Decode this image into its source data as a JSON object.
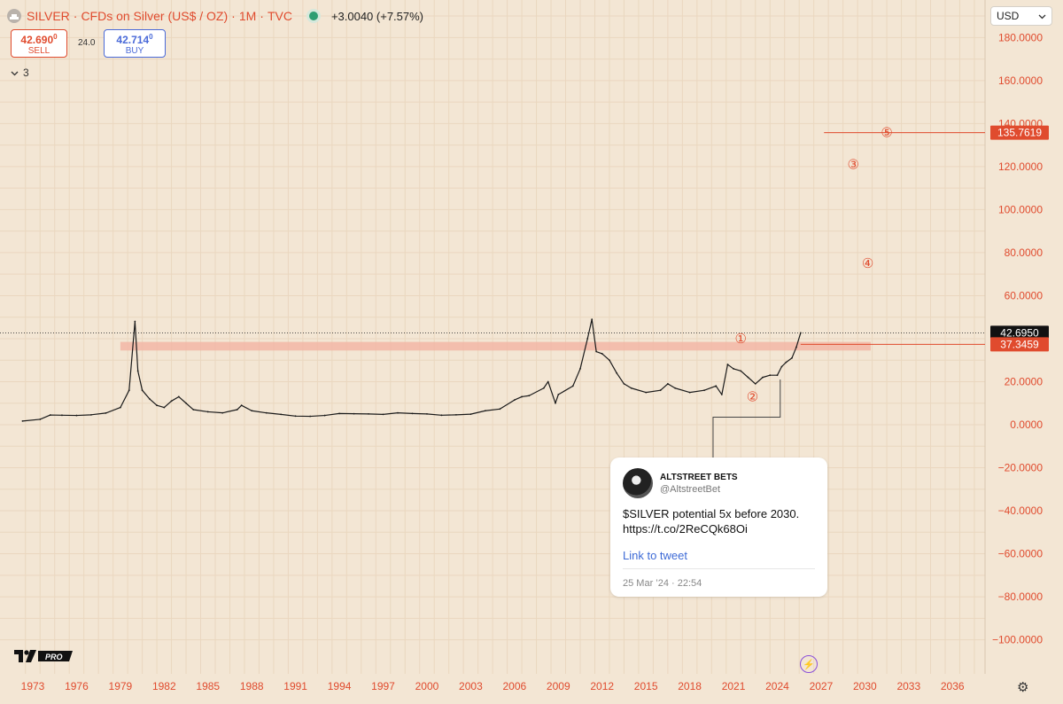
{
  "header": {
    "symbol": "SILVER",
    "description": "CFDs on Silver (US$ / OZ)",
    "interval": "1M",
    "source": "TVC",
    "change": "+3.0040 (+7.57%)"
  },
  "trade": {
    "sell_price": "42.690",
    "sell_sup": "0",
    "sell_label": "SELL",
    "spread": "24.0",
    "buy_price": "42.714",
    "buy_sup": "0",
    "buy_label": "BUY"
  },
  "indicators_count": "3",
  "currency": "USD",
  "tweet": {
    "name": "ALTSTREET BETS",
    "handle": "@AltstreetBet",
    "text_line1": "$SILVER potential 5x before 2030.",
    "text_line2": "https://t.co/2ReCQk68Oi",
    "link_label": "Link to tweet",
    "timestamp": "25 Mar ’24 · 22:54"
  },
  "logo_text": "PRO",
  "colors": {
    "background": "#f3e6d4",
    "accent_red": "#e04b2e",
    "zone": "#f2b6a6",
    "price_tag": "#111111",
    "buy_blue": "#4a6ad8"
  },
  "chart_data": {
    "type": "line",
    "ylim": [
      -110,
      190
    ],
    "xlim": [
      1972.5,
      2037.5
    ],
    "y_ticks": [
      "180.0000",
      "160.0000",
      "140.0000",
      "120.0000",
      "100.0000",
      "80.0000",
      "60.0000",
      "40.0000",
      "20.0000",
      "0.0000",
      "−20.0000",
      "−40.0000",
      "−60.0000",
      "−80.0000",
      "−100.0000"
    ],
    "y_tick_values": [
      180,
      160,
      140,
      120,
      100,
      80,
      60,
      40,
      20,
      0,
      -20,
      -40,
      -60,
      -80,
      -100
    ],
    "x_ticks": [
      "1973",
      "1976",
      "1979",
      "1982",
      "1985",
      "1988",
      "1991",
      "1994",
      "1997",
      "2000",
      "2003",
      "2006",
      "2009",
      "2012",
      "2015",
      "2018",
      "2021",
      "2024",
      "2027",
      "2030",
      "2033",
      "2036"
    ],
    "x_tick_values": [
      1973,
      1976,
      1979,
      1982,
      1985,
      1988,
      1991,
      1994,
      1997,
      2000,
      2003,
      2006,
      2009,
      2012,
      2015,
      2018,
      2021,
      2024,
      2027,
      2030,
      2033,
      2036
    ],
    "series": [
      {
        "x": [
          1972.3,
          1973.5,
          1974.2,
          1975,
          1976,
          1977,
          1978,
          1979,
          1979.6,
          1980.0,
          1980.2,
          1980.5,
          1981,
          1981.5,
          1982,
          1982.5,
          1983.0,
          1983.5,
          1984,
          1985,
          1986,
          1987,
          1987.3,
          1988,
          1989,
          1990,
          1991,
          1992,
          1993,
          1994,
          1995,
          1996,
          1997,
          1998,
          1999,
          2000,
          2001,
          2002,
          2003,
          2004,
          2005,
          2006,
          2006.5,
          2007,
          2008,
          2008.3,
          2008.8,
          2009,
          2010,
          2010.5,
          2011.0,
          2011.3,
          2011.6,
          2012,
          2012.5,
          2013,
          2013.5,
          2014,
          2015,
          2016,
          2016.5,
          2017,
          2018,
          2019,
          2019.8,
          2020.2,
          2020.6,
          2021,
          2021.5,
          2022,
          2022.5,
          2023,
          2023.5,
          2024,
          2024.3,
          2024.6,
          2025,
          2025.3,
          2025.6
        ],
        "y": [
          1.7,
          2.5,
          4.5,
          4.4,
          4.3,
          4.6,
          5.4,
          8.0,
          16,
          48,
          25,
          16,
          12,
          9,
          8,
          11,
          13,
          10,
          7,
          6,
          5.5,
          7,
          9,
          6.5,
          5.5,
          4.8,
          4.0,
          3.9,
          4.3,
          5.2,
          5.1,
          5.0,
          4.8,
          5.5,
          5.2,
          5.0,
          4.4,
          4.6,
          4.9,
          6.5,
          7.3,
          11.5,
          13,
          13.5,
          17,
          20,
          10,
          14,
          18,
          26,
          40,
          49,
          34,
          33,
          30,
          24,
          19,
          17,
          15,
          16,
          19,
          17,
          15,
          16,
          18,
          14,
          28,
          26,
          25,
          22,
          19,
          22,
          23,
          23,
          27,
          29,
          31,
          36,
          42.7
        ]
      }
    ],
    "resistance_zone": [
      34.5,
      38.5
    ],
    "current_price": 42.695,
    "current_price_label": "42.6950",
    "zone_price_label": "37.3459",
    "target_price": 135.7619,
    "target_price_label": "135.7619",
    "wave_labels": [
      {
        "label": "①",
        "x": 2021.5,
        "y": 40
      },
      {
        "label": "②",
        "x": 2022.3,
        "y": 13
      },
      {
        "label": "③",
        "x": 2029.2,
        "y": 121
      },
      {
        "label": "④",
        "x": 2030.2,
        "y": 75
      },
      {
        "label": "⑤",
        "x": 2031.5,
        "y": 135.7619
      }
    ]
  }
}
